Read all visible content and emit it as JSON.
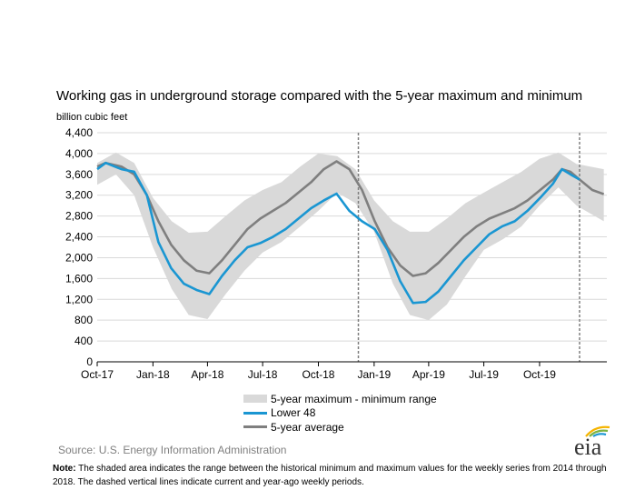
{
  "chart_data": {
    "type": "line",
    "title": "Working gas in underground  storage compared with the 5-year maximum and minimum",
    "ylabel": "billion cubic feet",
    "ylim": [
      0,
      4400
    ],
    "yticks": [
      0,
      400,
      800,
      1200,
      1600,
      2000,
      2400,
      2800,
      3200,
      3600,
      4000,
      4400
    ],
    "ytick_labels": [
      "0",
      "400",
      "800",
      "1,200",
      "1,600",
      "2,000",
      "2,400",
      "2,800",
      "3,200",
      "3,600",
      "4,000",
      "4,400"
    ],
    "xlim": [
      "2017-10-01",
      "2020-01-20"
    ],
    "xticks": [
      "2017-10-01",
      "2018-01-01",
      "2018-04-01",
      "2018-07-01",
      "2018-10-01",
      "2019-01-01",
      "2019-04-01",
      "2019-07-01",
      "2019-10-01"
    ],
    "xtick_labels": [
      "Oct-17",
      "Jan-18",
      "Apr-18",
      "Jul-18",
      "Oct-18",
      "Jan-19",
      "Apr-19",
      "Jul-19",
      "Oct-19"
    ],
    "grid": true,
    "vlines": [
      "2018-12-06",
      "2019-12-06"
    ],
    "legend_position": "bottom",
    "series": [
      {
        "name": "5-year maximum - minimum range",
        "kind": "range",
        "color": "#d9d9d9",
        "x": [
          "2017-10-01",
          "2017-11-01",
          "2017-12-01",
          "2018-01-01",
          "2018-02-01",
          "2018-03-01",
          "2018-04-01",
          "2018-05-01",
          "2018-06-01",
          "2018-07-01",
          "2018-08-01",
          "2018-09-01",
          "2018-10-01",
          "2018-11-01",
          "2018-12-01",
          "2019-01-01",
          "2019-02-01",
          "2019-03-01",
          "2019-04-01",
          "2019-05-01",
          "2019-06-01",
          "2019-07-01",
          "2019-08-01",
          "2019-09-01",
          "2019-10-01",
          "2019-11-01",
          "2019-12-01",
          "2020-01-15"
        ],
        "upper": [
          3820,
          4020,
          3820,
          3150,
          2700,
          2480,
          2500,
          2800,
          3100,
          3300,
          3450,
          3750,
          4000,
          3950,
          3700,
          3100,
          2700,
          2500,
          2500,
          2750,
          3050,
          3250,
          3450,
          3650,
          3900,
          4020,
          3800,
          3700
        ],
        "lower": [
          3400,
          3600,
          3200,
          2200,
          1400,
          900,
          820,
          1300,
          1750,
          2100,
          2300,
          2600,
          2900,
          3250,
          3050,
          2500,
          1500,
          900,
          800,
          1100,
          1650,
          2150,
          2350,
          2600,
          3000,
          3350,
          3000,
          2700
        ]
      },
      {
        "name": "Lower 48",
        "kind": "line",
        "color": "#1a96d2",
        "x": [
          "2017-10-01",
          "2017-10-15",
          "2017-11-10",
          "2017-12-01",
          "2017-12-22",
          "2018-01-10",
          "2018-01-31",
          "2018-02-21",
          "2018-03-14",
          "2018-04-04",
          "2018-04-25",
          "2018-05-16",
          "2018-06-06",
          "2018-06-27",
          "2018-07-18",
          "2018-08-08",
          "2018-08-29",
          "2018-09-19",
          "2018-10-10",
          "2018-10-31",
          "2018-11-21",
          "2018-12-12",
          "2019-01-02",
          "2019-01-23",
          "2019-02-13",
          "2019-03-06",
          "2019-03-27",
          "2019-04-17",
          "2019-05-08",
          "2019-05-29",
          "2019-06-19",
          "2019-07-10",
          "2019-07-31",
          "2019-08-21",
          "2019-09-11",
          "2019-10-02",
          "2019-10-23",
          "2019-11-07",
          "2019-11-21",
          "2019-12-06"
        ],
        "y": [
          3700,
          3820,
          3700,
          3650,
          3200,
          2300,
          1800,
          1500,
          1380,
          1300,
          1650,
          1950,
          2200,
          2280,
          2400,
          2550,
          2750,
          2950,
          3100,
          3230,
          2900,
          2700,
          2550,
          2150,
          1550,
          1130,
          1150,
          1350,
          1650,
          1950,
          2200,
          2450,
          2600,
          2700,
          2900,
          3150,
          3420,
          3700,
          3600,
          3500
        ]
      },
      {
        "name": "5-year average",
        "kind": "line",
        "color": "#7f7f7f",
        "x": [
          "2017-10-01",
          "2017-10-15",
          "2017-11-10",
          "2017-12-01",
          "2017-12-22",
          "2018-01-10",
          "2018-01-31",
          "2018-02-21",
          "2018-03-14",
          "2018-04-04",
          "2018-04-25",
          "2018-05-16",
          "2018-06-06",
          "2018-06-27",
          "2018-07-18",
          "2018-08-08",
          "2018-08-29",
          "2018-09-19",
          "2018-10-10",
          "2018-10-31",
          "2018-11-21",
          "2018-12-12",
          "2019-01-02",
          "2019-01-23",
          "2019-02-13",
          "2019-03-06",
          "2019-03-27",
          "2019-04-17",
          "2019-05-08",
          "2019-05-29",
          "2019-06-19",
          "2019-07-10",
          "2019-07-31",
          "2019-08-21",
          "2019-09-11",
          "2019-10-02",
          "2019-10-23",
          "2019-11-07",
          "2019-11-21",
          "2019-12-06",
          "2019-12-27",
          "2020-01-15"
        ],
        "y": [
          3750,
          3820,
          3750,
          3600,
          3200,
          2700,
          2250,
          1950,
          1750,
          1700,
          1950,
          2250,
          2550,
          2750,
          2900,
          3050,
          3250,
          3450,
          3700,
          3850,
          3700,
          3300,
          2700,
          2200,
          1850,
          1650,
          1700,
          1900,
          2150,
          2400,
          2600,
          2750,
          2850,
          2950,
          3100,
          3300,
          3500,
          3700,
          3650,
          3500,
          3300,
          3220
        ]
      }
    ]
  },
  "source_label": "Source:",
  "source_text": "U.S. Energy Information Administration",
  "note_label": "Note:",
  "note_text": "The shaded area indicates the range between the historical minimum and maximum values for the weekly series from 2014 through 2018. The dashed vertical lines indicate current and year-ago weekly periods.",
  "logo_text": "eia",
  "logo_colors": {
    "blue": "#1a96d2",
    "green": "#7cb342",
    "yellow": "#f5b400"
  }
}
